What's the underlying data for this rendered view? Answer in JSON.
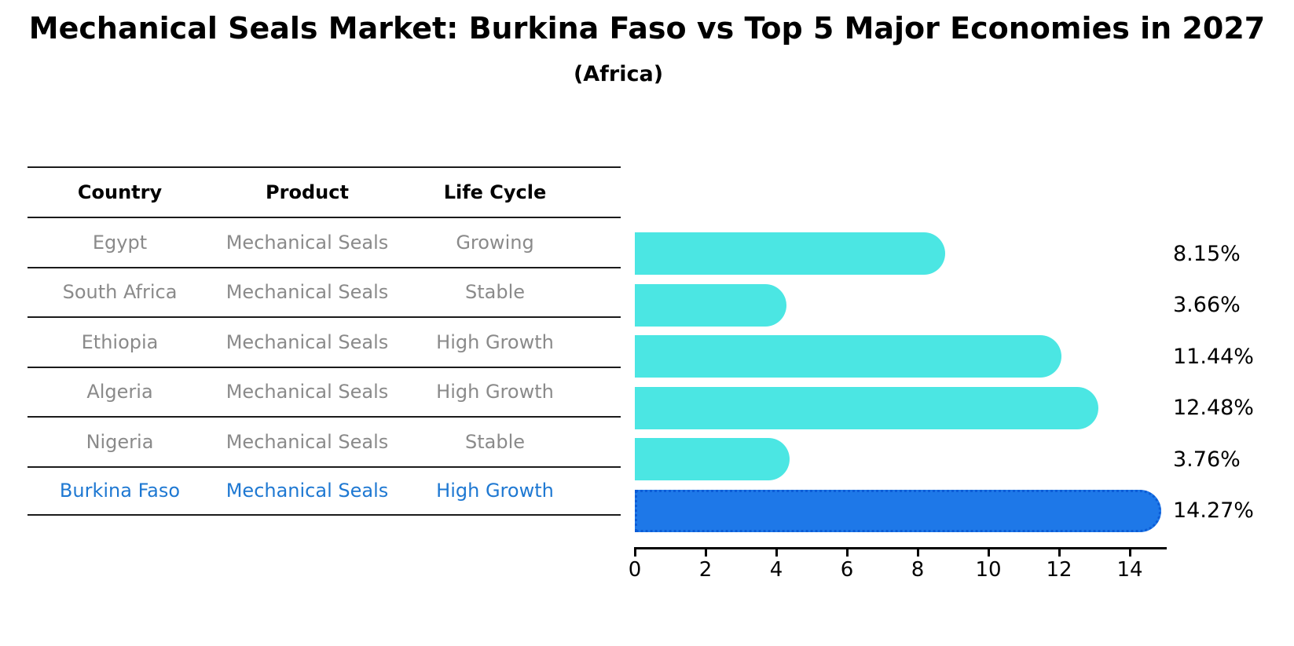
{
  "header": {
    "title": "Mechanical Seals Market: Burkina Faso vs Top 5 Major Economies in 2027",
    "subtitle": "(Africa)"
  },
  "table": {
    "columns": [
      "Country",
      "Product",
      "Life Cycle"
    ],
    "rows": [
      {
        "country": "Egypt",
        "product": "Mechanical Seals",
        "life_cycle": "Growing",
        "highlight": false
      },
      {
        "country": "South Africa",
        "product": "Mechanical Seals",
        "life_cycle": "Stable",
        "highlight": false
      },
      {
        "country": "Ethiopia",
        "product": "Mechanical Seals",
        "life_cycle": "High Growth",
        "highlight": false
      },
      {
        "country": "Algeria",
        "product": "Mechanical Seals",
        "life_cycle": "High Growth",
        "highlight": false
      },
      {
        "country": "Nigeria",
        "product": "Mechanical Seals",
        "life_cycle": "Stable",
        "highlight": false
      },
      {
        "country": "Burkina Faso",
        "product": "Mechanical Seals",
        "life_cycle": "High Growth",
        "highlight": true
      }
    ]
  },
  "chart_data": {
    "type": "bar",
    "orientation": "horizontal",
    "title": "Mechanical Seals Market: Burkina Faso vs Top 5 Major Economies in 2027 (Africa)",
    "categories": [
      "Egypt",
      "South Africa",
      "Ethiopia",
      "Algeria",
      "Nigeria",
      "Burkina Faso"
    ],
    "values": [
      8.15,
      3.66,
      11.44,
      12.48,
      3.76,
      14.27
    ],
    "value_labels": [
      "8.15%",
      "3.66%",
      "11.44%",
      "12.48%",
      "3.76%",
      "14.27%"
    ],
    "unit": "%",
    "highlight_index": 5,
    "xlim": [
      0,
      15
    ],
    "x_ticks": [
      0,
      2,
      4,
      6,
      8,
      10,
      12,
      14
    ],
    "grid": false,
    "legend": false,
    "bar_color": "#4be6e3",
    "highlight_bar_color": "#1e78e8",
    "highlight_border_color": "#0c5cd6",
    "highlight_text_color": "#1e78d2",
    "row_text_color": "#8a8a8a",
    "axis_color": "#000000"
  }
}
